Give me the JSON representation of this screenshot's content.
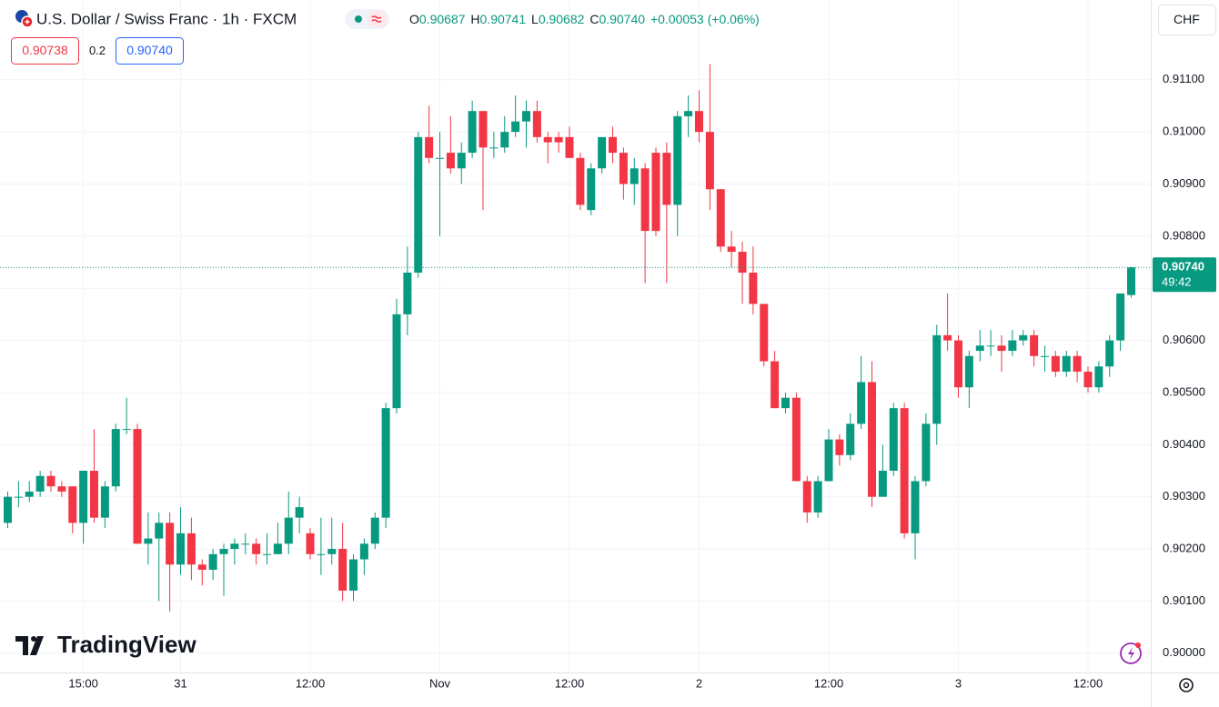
{
  "header": {
    "title": "U.S. Dollar / Swiss Franc · 1h · FXCM",
    "ohlc": [
      {
        "label": "O",
        "value": "0.90687"
      },
      {
        "label": "H",
        "value": "0.90741"
      },
      {
        "label": "L",
        "value": "0.90682"
      },
      {
        "label": "C",
        "value": "0.90740"
      }
    ],
    "change": "+0.00053 (+0.06%)",
    "bid": "0.90738",
    "spread": "0.2",
    "ask": "0.90740",
    "currency": "CHF"
  },
  "price_tag": {
    "price": "0.90740",
    "countdown": "49:42"
  },
  "logo": "TradingView",
  "chart_data": {
    "type": "candlestick",
    "up_color": "#089981",
    "down_color": "#f23645",
    "grid": true,
    "categories": [
      null,
      null,
      null,
      null,
      null,
      null,
      null,
      "15:00",
      null,
      null,
      null,
      null,
      null,
      null,
      null,
      null,
      "31",
      null,
      null,
      null,
      null,
      null,
      null,
      null,
      null,
      null,
      null,
      null,
      "12:00",
      null,
      null,
      null,
      null,
      null,
      null,
      null,
      null,
      null,
      null,
      null,
      "Nov",
      null,
      null,
      null,
      null,
      null,
      null,
      null,
      null,
      null,
      null,
      null,
      "12:00",
      null,
      null,
      null,
      null,
      null,
      null,
      null,
      null,
      null,
      null,
      null,
      "2",
      null,
      null,
      null,
      null,
      null,
      null,
      null,
      null,
      null,
      null,
      null,
      "12:00",
      null,
      null,
      null,
      null,
      null,
      null,
      null,
      null,
      null,
      null,
      null,
      "3",
      null,
      null,
      null,
      null,
      null,
      null,
      null,
      null,
      null,
      null,
      null,
      "12:00",
      null,
      null,
      null,
      null
    ],
    "open": [
      0.9025,
      0.903,
      0.903,
      0.9031,
      0.9034,
      0.9032,
      0.9032,
      0.9025,
      0.9035,
      0.9026,
      0.9032,
      0.9043,
      0.9043,
      0.9021,
      0.9022,
      0.9025,
      0.9017,
      0.9023,
      0.9017,
      0.9016,
      0.9019,
      0.902,
      0.9021,
      0.9021,
      0.9019,
      0.9019,
      0.9021,
      0.9026,
      0.9023,
      0.9019,
      0.9019,
      0.902,
      0.9012,
      0.9018,
      0.9021,
      0.9026,
      0.9047,
      0.9065,
      0.9073,
      0.9099,
      0.9095,
      0.9096,
      0.9093,
      0.9096,
      0.9104,
      0.9097,
      0.9097,
      0.91,
      0.9102,
      0.9104,
      0.9099,
      0.9099,
      0.9099,
      0.9095,
      0.9085,
      0.9093,
      0.9099,
      0.9096,
      0.909,
      0.9093,
      0.9096,
      0.9096,
      0.9086,
      0.9103,
      0.9104,
      0.91,
      0.9089,
      0.9078,
      0.9077,
      0.9073,
      0.9067,
      0.9056,
      0.9047,
      0.9049,
      0.9033,
      0.9027,
      0.9033,
      0.9041,
      0.9038,
      0.9044,
      0.9052,
      0.903,
      0.9035,
      0.9047,
      0.9023,
      0.9033,
      0.9044,
      0.9061,
      0.906,
      0.9051,
      0.9058,
      0.9059,
      0.9059,
      0.9058,
      0.906,
      0.9061,
      0.9057,
      0.9057,
      0.9054,
      0.9057,
      0.9054,
      0.9051,
      0.9055,
      0.906,
      0.90687
    ],
    "high": [
      0.9031,
      0.9033,
      0.9033,
      0.9035,
      0.9035,
      0.9033,
      0.9032,
      0.9035,
      0.9043,
      0.9033,
      0.9044,
      0.9049,
      0.9044,
      0.9027,
      0.9027,
      0.9027,
      0.9028,
      0.9026,
      0.9018,
      0.902,
      0.9021,
      0.9022,
      0.9023,
      0.9022,
      0.9023,
      0.9025,
      0.9031,
      0.903,
      0.9024,
      0.9026,
      0.9026,
      0.9025,
      0.9019,
      0.9022,
      0.9027,
      0.9048,
      0.9068,
      0.9078,
      0.91,
      0.9105,
      0.91,
      0.9103,
      0.9098,
      0.9106,
      0.9104,
      0.91,
      0.9103,
      0.9107,
      0.9106,
      0.9106,
      0.91,
      0.91,
      0.9101,
      0.9096,
      0.9094,
      0.9099,
      0.9101,
      0.9097,
      0.9095,
      0.9094,
      0.9097,
      0.9098,
      0.9104,
      0.9107,
      0.9108,
      0.9113,
      0.9089,
      0.9081,
      0.9079,
      0.9078,
      0.9067,
      0.9058,
      0.905,
      0.905,
      0.9034,
      0.9034,
      0.9043,
      0.9042,
      0.9046,
      0.9057,
      0.9056,
      0.904,
      0.9048,
      0.9048,
      0.9034,
      0.9046,
      0.9063,
      0.9069,
      0.9061,
      0.9058,
      0.9062,
      0.9062,
      0.9061,
      0.9062,
      0.9062,
      0.9062,
      0.9059,
      0.9058,
      0.9058,
      0.9058,
      0.9055,
      0.9056,
      0.9061,
      0.9069,
      0.90741
    ],
    "low": [
      0.9024,
      0.9028,
      0.9029,
      0.903,
      0.9031,
      0.903,
      0.9023,
      0.9021,
      0.9025,
      0.9024,
      0.9031,
      0.9042,
      0.9021,
      0.9017,
      0.901,
      0.9008,
      0.9015,
      0.9014,
      0.9013,
      0.9014,
      0.9011,
      0.9017,
      0.9019,
      0.9017,
      0.9017,
      0.9019,
      0.9019,
      0.9023,
      0.9018,
      0.9015,
      0.9017,
      0.901,
      0.901,
      0.9015,
      0.902,
      0.9024,
      0.9046,
      0.9061,
      0.9072,
      0.9094,
      0.908,
      0.9092,
      0.909,
      0.9095,
      0.9085,
      0.9095,
      0.9096,
      0.9099,
      0.9097,
      0.9098,
      0.9094,
      0.9096,
      0.9095,
      0.9085,
      0.9084,
      0.9092,
      0.9094,
      0.9087,
      0.9086,
      0.9071,
      0.908,
      0.9071,
      0.908,
      0.9099,
      0.9098,
      0.9085,
      0.9077,
      0.9074,
      0.9067,
      0.9065,
      0.9055,
      0.9047,
      0.9046,
      0.9033,
      0.9025,
      0.9026,
      0.9033,
      0.9036,
      0.9037,
      0.9043,
      0.9028,
      0.903,
      0.9034,
      0.9022,
      0.9018,
      0.9032,
      0.904,
      0.9058,
      0.9049,
      0.9047,
      0.9056,
      0.9057,
      0.9054,
      0.9057,
      0.9059,
      0.9055,
      0.9054,
      0.9053,
      0.9053,
      0.9052,
      0.905,
      0.905,
      0.9053,
      0.9058,
      0.90682
    ],
    "close": [
      0.903,
      0.903,
      0.9031,
      0.9034,
      0.9032,
      0.9031,
      0.9025,
      0.9035,
      0.9026,
      0.9032,
      0.9043,
      0.9043,
      0.9021,
      0.9022,
      0.9025,
      0.9017,
      0.9023,
      0.9017,
      0.9016,
      0.9019,
      0.902,
      0.9021,
      0.9021,
      0.9019,
      0.9019,
      0.9021,
      0.9026,
      0.9028,
      0.9019,
      0.9019,
      0.902,
      0.9012,
      0.9018,
      0.9021,
      0.9026,
      0.9047,
      0.9065,
      0.9073,
      0.9099,
      0.9095,
      0.9095,
      0.9093,
      0.9096,
      0.9104,
      0.9097,
      0.9097,
      0.91,
      0.9102,
      0.9104,
      0.9099,
      0.9098,
      0.9098,
      0.9095,
      0.9086,
      0.9093,
      0.9099,
      0.9096,
      0.909,
      0.9093,
      0.9081,
      0.9081,
      0.9086,
      0.9103,
      0.9104,
      0.91,
      0.9089,
      0.9078,
      0.9077,
      0.9073,
      0.9067,
      0.9056,
      0.9047,
      0.9049,
      0.9033,
      0.9027,
      0.9033,
      0.9041,
      0.9038,
      0.9044,
      0.9052,
      0.903,
      0.9035,
      0.9047,
      0.9023,
      0.9033,
      0.9044,
      0.9061,
      0.906,
      0.9051,
      0.9057,
      0.9059,
      0.9059,
      0.9058,
      0.906,
      0.9061,
      0.9057,
      0.9057,
      0.9054,
      0.9057,
      0.9054,
      0.9051,
      0.9055,
      0.906,
      0.9069,
      0.9074
    ],
    "ylim": [
      0.89963,
      0.91253
    ],
    "yticks": [
      {
        "value": 0.9,
        "label": "0.90000"
      },
      {
        "value": 0.901,
        "label": "0.90100"
      },
      {
        "value": 0.902,
        "label": "0.90200"
      },
      {
        "value": 0.903,
        "label": "0.90300"
      },
      {
        "value": 0.904,
        "label": "0.90400"
      },
      {
        "value": 0.905,
        "label": "0.90500"
      },
      {
        "value": 0.906,
        "label": "0.90600"
      },
      {
        "value": 0.907,
        "label": "0.90700"
      },
      {
        "value": 0.908,
        "label": "0.90800"
      },
      {
        "value": 0.909,
        "label": "0.90900"
      },
      {
        "value": 0.91,
        "label": "0.91000"
      },
      {
        "value": 0.911,
        "label": "0.91100"
      }
    ]
  }
}
